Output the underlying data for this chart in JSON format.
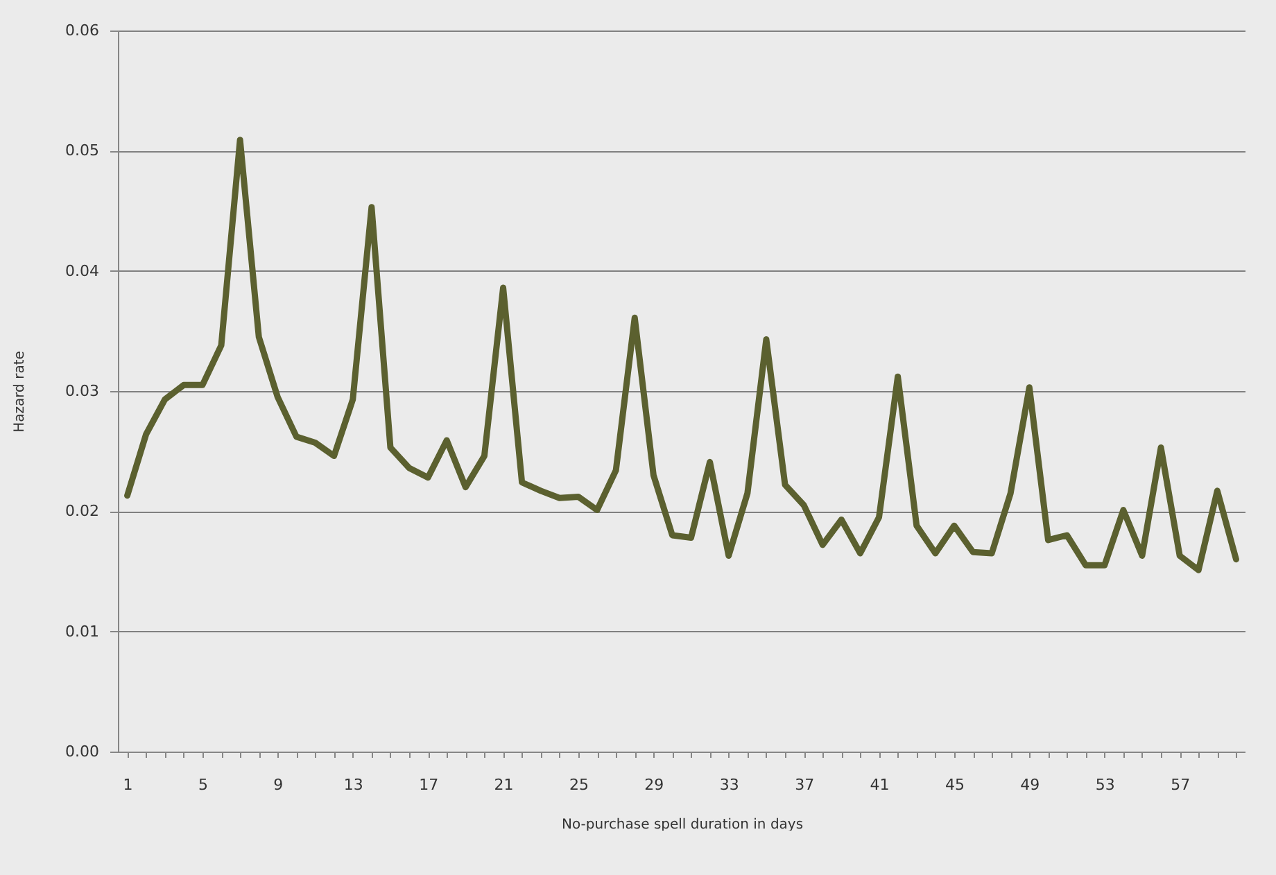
{
  "chart_data": {
    "type": "line",
    "xlabel": "No-purchase spell duration in days",
    "ylabel": "Hazard rate",
    "categories": [
      "1",
      null,
      null,
      null,
      "5",
      null,
      null,
      null,
      "9",
      null,
      null,
      null,
      "13",
      null,
      null,
      null,
      "17",
      null,
      null,
      null,
      "21",
      null,
      null,
      null,
      "25",
      null,
      null,
      null,
      "29",
      null,
      null,
      null,
      "33",
      null,
      null,
      null,
      "37",
      null,
      null,
      null,
      "41",
      null,
      null,
      null,
      "45",
      null,
      null,
      null,
      "49",
      null,
      null,
      null,
      "53",
      null,
      null,
      null,
      "57",
      null,
      null,
      null
    ],
    "series": [
      {
        "color": "#5b602f",
        "values": [
          0.0213,
          0.0264,
          0.0293,
          0.0305,
          0.0305,
          0.0338,
          0.0509,
          0.0345,
          0.0295,
          0.0262,
          0.0257,
          0.0246,
          0.0293,
          0.0453,
          0.0253,
          0.0236,
          0.0228,
          0.0259,
          0.022,
          0.0246,
          0.0386,
          0.0224,
          0.0217,
          0.0211,
          0.0212,
          0.0201,
          0.0234,
          0.0361,
          0.023,
          0.018,
          0.0178,
          0.0241,
          0.0163,
          0.0215,
          0.0343,
          0.0222,
          0.0205,
          0.0172,
          0.0193,
          0.0165,
          0.0195,
          0.0312,
          0.0188,
          0.0165,
          0.0188,
          0.0166,
          0.0165,
          0.0215,
          0.0303,
          0.0176,
          0.018,
          0.0155,
          0.0155,
          0.0201,
          0.0163,
          0.0253,
          0.0163,
          0.0151,
          0.0217,
          0.016
        ]
      }
    ],
    "ylim": [
      0,
      0.06
    ],
    "yticks": [
      {
        "value": 0,
        "label": "0.00"
      },
      0.01,
      0.02,
      0.03,
      0.04,
      0.05,
      0.06
    ],
    "grid": "y",
    "line_style": "solid"
  }
}
